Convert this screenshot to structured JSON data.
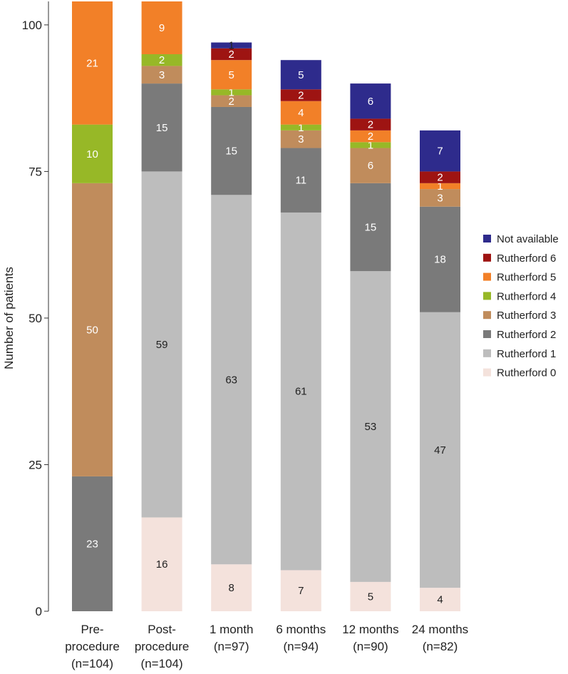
{
  "chart_data": {
    "type": "stacked-bar",
    "ylabel": "Number of patients",
    "xlabel": "",
    "ylim": [
      0,
      104
    ],
    "yticks": [
      0,
      25,
      50,
      75,
      100
    ],
    "categories": [
      {
        "line1": "Pre-",
        "line2": "procedure",
        "line3": "(n=104)"
      },
      {
        "line1": "Post-",
        "line2": "procedure",
        "line3": "(n=104)"
      },
      {
        "line1": "1 month",
        "line2": "(n=97)",
        "line3": ""
      },
      {
        "line1": "6 months",
        "line2": "(n=94)",
        "line3": ""
      },
      {
        "line1": "12 months",
        "line2": "(n=90)",
        "line3": ""
      },
      {
        "line1": "24 months",
        "line2": "(n=82)",
        "line3": ""
      }
    ],
    "series": [
      {
        "name": "Rutherford 0",
        "color": "#f4e2dc",
        "label_color": "#222222",
        "values": [
          0,
          16,
          8,
          7,
          5,
          4
        ]
      },
      {
        "name": "Rutherford 1",
        "color": "#bdbdbd",
        "label_color": "#222222",
        "values": [
          0,
          59,
          63,
          61,
          53,
          47
        ]
      },
      {
        "name": "Rutherford 2",
        "color": "#7a7a7a",
        "label_color": "#ffffff",
        "values": [
          23,
          15,
          15,
          11,
          15,
          18
        ]
      },
      {
        "name": "Rutherford 3",
        "color": "#c08c5c",
        "label_color": "#ffffff",
        "values": [
          50,
          3,
          2,
          3,
          6,
          3
        ]
      },
      {
        "name": "Rutherford 4",
        "color": "#97b827",
        "label_color": "#ffffff",
        "values": [
          10,
          2,
          1,
          1,
          1,
          0
        ]
      },
      {
        "name": "Rutherford 5",
        "color": "#f28028",
        "label_color": "#ffffff",
        "values": [
          21,
          9,
          5,
          4,
          2,
          1
        ]
      },
      {
        "name": "Rutherford 6",
        "color": "#9e1412",
        "label_color": "#ffffff",
        "values": [
          0,
          0,
          2,
          2,
          2,
          2
        ]
      },
      {
        "name": "Not available",
        "color": "#2e2b8c",
        "label_color": "#ffffff",
        "values": [
          0,
          0,
          1,
          5,
          6,
          7
        ]
      }
    ],
    "special_label_colors": {
      "Not available|1 month": "#222222"
    },
    "legend": {
      "position": "right",
      "order": [
        "Not available",
        "Rutherford 6",
        "Rutherford 5",
        "Rutherford 4",
        "Rutherford 3",
        "Rutherford 2",
        "Rutherford 1",
        "Rutherford 0"
      ]
    }
  }
}
